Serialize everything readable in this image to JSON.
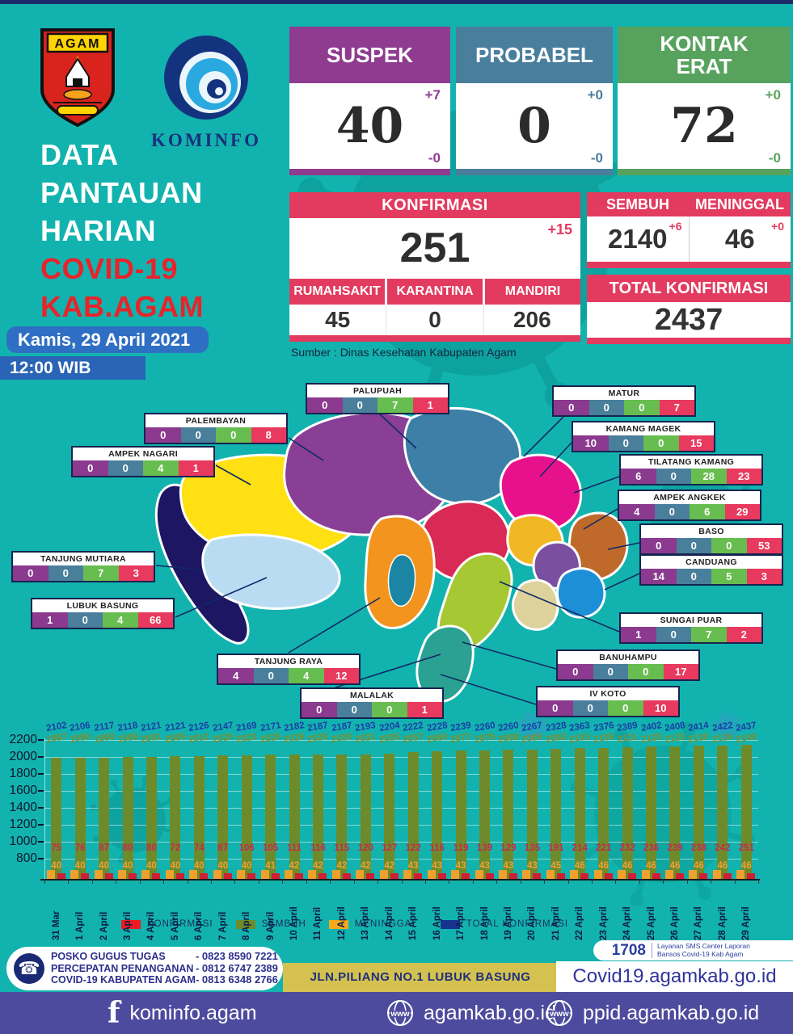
{
  "header": {
    "crest_label": "AGAM",
    "kominfo_label": "KOMINFO",
    "title_white": [
      "DATA",
      "PANTAUAN",
      "HARIAN"
    ],
    "title_red": [
      "COVID-19",
      "KAB.AGAM"
    ],
    "date": "Kamis, 29 April 2021",
    "time": "12:00 WIB"
  },
  "summary": {
    "suspek": {
      "label": "SUSPEK",
      "value": "40",
      "increase": "+7",
      "decrease": "-0",
      "color": "#8e3b90"
    },
    "probabel": {
      "label": "PROBABEL",
      "value": "0",
      "increase": "+0",
      "decrease": "-0",
      "color": "#497e9d"
    },
    "kontak_erat": {
      "label": "KONTAK ERAT",
      "value": "72",
      "increase": "+0",
      "decrease": "-0",
      "color": "#57a35e"
    },
    "konfirmasi": {
      "label": "KONFIRMASI",
      "value": "251",
      "delta": "+15"
    },
    "breakdown": {
      "headers": [
        "RUMAHSAKIT",
        "KARANTINA",
        "MANDIRI"
      ],
      "values": [
        "45",
        "0",
        "206"
      ]
    },
    "sembuh": {
      "label": "SEMBUH",
      "value": "2140",
      "delta": "+6"
    },
    "meninggal": {
      "label": "MENINGGAL",
      "value": "46",
      "delta": "+0"
    },
    "total": {
      "label": "TOTAL KONFIRMASI",
      "value": "2437"
    },
    "source": "Sumber : Dinas Kesehatan Kabupaten Agam",
    "accent_color": "#e23b5f"
  },
  "map": {
    "cell_colors": [
      "#8b3a8f",
      "#4a7f9c",
      "#67bd4f",
      "#e8395e"
    ],
    "districts": [
      {
        "name": "PALUPUAH",
        "values": [
          "0",
          "0",
          "7",
          "1"
        ]
      },
      {
        "name": "MATUR",
        "values": [
          "0",
          "0",
          "0",
          "7"
        ]
      },
      {
        "name": "PALEMBAYAN",
        "values": [
          "0",
          "0",
          "0",
          "8"
        ]
      },
      {
        "name": "KAMANG MAGEK",
        "values": [
          "10",
          "0",
          "0",
          "15"
        ]
      },
      {
        "name": "AMPEK NAGARI",
        "values": [
          "0",
          "0",
          "4",
          "1"
        ]
      },
      {
        "name": "TILATANG KAMANG",
        "values": [
          "6",
          "0",
          "28",
          "23"
        ]
      },
      {
        "name": "AMPEK ANGKEK",
        "values": [
          "4",
          "0",
          "6",
          "29"
        ]
      },
      {
        "name": "BASO",
        "values": [
          "0",
          "0",
          "0",
          "53"
        ]
      },
      {
        "name": "CANDUANG",
        "values": [
          "14",
          "0",
          "5",
          "3"
        ]
      },
      {
        "name": "TANJUNG MUTIARA",
        "values": [
          "0",
          "0",
          "7",
          "3"
        ]
      },
      {
        "name": "LUBUK BASUNG",
        "values": [
          "1",
          "0",
          "4",
          "66"
        ]
      },
      {
        "name": "SUNGAI PUAR",
        "values": [
          "1",
          "0",
          "7",
          "2"
        ]
      },
      {
        "name": "BANUHAMPU",
        "values": [
          "0",
          "0",
          "0",
          "17"
        ]
      },
      {
        "name": "TANJUNG RAYA",
        "values": [
          "4",
          "0",
          "4",
          "12"
        ]
      },
      {
        "name": "IV KOTO",
        "values": [
          "0",
          "0",
          "0",
          "10"
        ]
      },
      {
        "name": "MALALAK",
        "values": [
          "0",
          "0",
          "0",
          "1"
        ]
      }
    ]
  },
  "chart_data": {
    "type": "bar",
    "x": [
      "31 Mar",
      "1 April",
      "2 April",
      "3 April",
      "4 April",
      "5 April",
      "6 April",
      "7 April",
      "8 April",
      "9 April",
      "10 April",
      "11 April",
      "12 April",
      "13 April",
      "14 April",
      "15 April",
      "16 April",
      "17 April",
      "18 April",
      "19 April",
      "20 April",
      "21 April",
      "22 April",
      "23 April",
      "24 April",
      "25 April",
      "26 April",
      "27 April",
      "28 April",
      "29 April"
    ],
    "series": [
      {
        "name": "KONFIRMASI",
        "color": "#ed1c24",
        "values": [
          75,
          76,
          87,
          80,
          80,
          72,
          74,
          87,
          106,
          105,
          111,
          116,
          115,
          120,
          127,
          122,
          116,
          119,
          139,
          129,
          135,
          191,
          214,
          221,
          232,
          236,
          239,
          238,
          242,
          251
        ]
      },
      {
        "name": "SEMBUH",
        "color": "#6e8b2b",
        "values": [
          1987,
          1990,
          1990,
          1998,
          2001,
          2009,
          2012,
          2020,
          2023,
          2025,
          2029,
          2029,
          2030,
          2031,
          2035,
          2057,
          2069,
          2077,
          2078,
          2088,
          2089,
          2092,
          2103,
          2109,
          2111,
          2120,
          2123,
          2130,
          2134,
          2140
        ]
      },
      {
        "name": "MENINGGAL",
        "color": "#f5a81c",
        "values": [
          40,
          40,
          40,
          40,
          40,
          40,
          40,
          40,
          40,
          41,
          42,
          42,
          42,
          42,
          42,
          43,
          43,
          43,
          43,
          43,
          43,
          45,
          46,
          46,
          46,
          46,
          46,
          46,
          46,
          46
        ]
      },
      {
        "name": "TOTAL KONFIRMASI",
        "color": "#16338e",
        "values": [
          2102,
          2106,
          2117,
          2118,
          2121,
          2121,
          2126,
          2147,
          2169,
          2171,
          2182,
          2187,
          2187,
          2193,
          2204,
          2222,
          2228,
          2239,
          2260,
          2260,
          2267,
          2328,
          2363,
          2376,
          2389,
          2402,
          2408,
          2414,
          2422,
          2437
        ]
      }
    ],
    "ylim": [
      800,
      2200
    ],
    "yticks": [
      2200,
      2000,
      1800,
      1600,
      1400,
      1200,
      1000,
      800
    ],
    "grid": true,
    "legend_position": "bottom"
  },
  "footer": {
    "posko_lines": [
      "POSKO GUGUS TUGAS",
      "PERCEPATAN PENANGANAN",
      "COVID-19 KABUPATEN AGAM"
    ],
    "posko_phones": [
      "- 0823 8590 7221",
      "- 0812 6747 2389",
      "- 0813 6348 2766"
    ],
    "address": "JLN.PILIANG NO.1 LUBUK BASUNG",
    "sms_number": "1708",
    "sms_lines": [
      "Layanan SMS Center Laporan",
      "Bansos Covid-19 Kab Agam"
    ],
    "website": "Covid19.agamkab.go.id",
    "socials": [
      {
        "icon": "facebook",
        "label": "kominfo.agam"
      },
      {
        "icon": "globe",
        "label": "agamkab.go.id"
      },
      {
        "icon": "globe",
        "label": "ppid.agamkab.go.id"
      }
    ]
  }
}
